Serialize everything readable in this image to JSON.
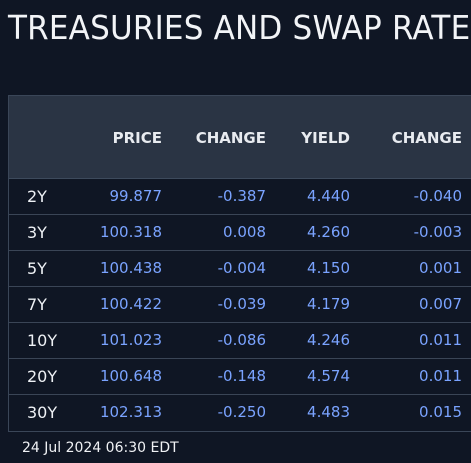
{
  "title": "TREASURIES AND SWAP RATES",
  "columns": {
    "price": "PRICE",
    "change": "CHANGE",
    "yield": "YIELD",
    "yield_change": "CHANGE"
  },
  "rows": [
    {
      "tenor": "2Y",
      "price": "99.877",
      "change": "-0.387",
      "yield": "4.440",
      "yield_change": "-0.040"
    },
    {
      "tenor": "3Y",
      "price": "100.318",
      "change": "0.008",
      "yield": "4.260",
      "yield_change": "-0.003"
    },
    {
      "tenor": "5Y",
      "price": "100.438",
      "change": "-0.004",
      "yield": "4.150",
      "yield_change": "0.001"
    },
    {
      "tenor": "7Y",
      "price": "100.422",
      "change": "-0.039",
      "yield": "4.179",
      "yield_change": "0.007"
    },
    {
      "tenor": "10Y",
      "price": "101.023",
      "change": "-0.086",
      "yield": "4.246",
      "yield_change": "0.011"
    },
    {
      "tenor": "20Y",
      "price": "100.648",
      "change": "-0.148",
      "yield": "4.574",
      "yield_change": "0.011"
    },
    {
      "tenor": "30Y",
      "price": "102.313",
      "change": "-0.250",
      "yield": "4.483",
      "yield_change": "0.015"
    }
  ],
  "timestamp": "24 Jul 2024 06:30 EDT",
  "colors": {
    "background": "#0f1624",
    "header": "#2a3444",
    "value": "#7aa3ff",
    "text": "#eef1f5"
  }
}
